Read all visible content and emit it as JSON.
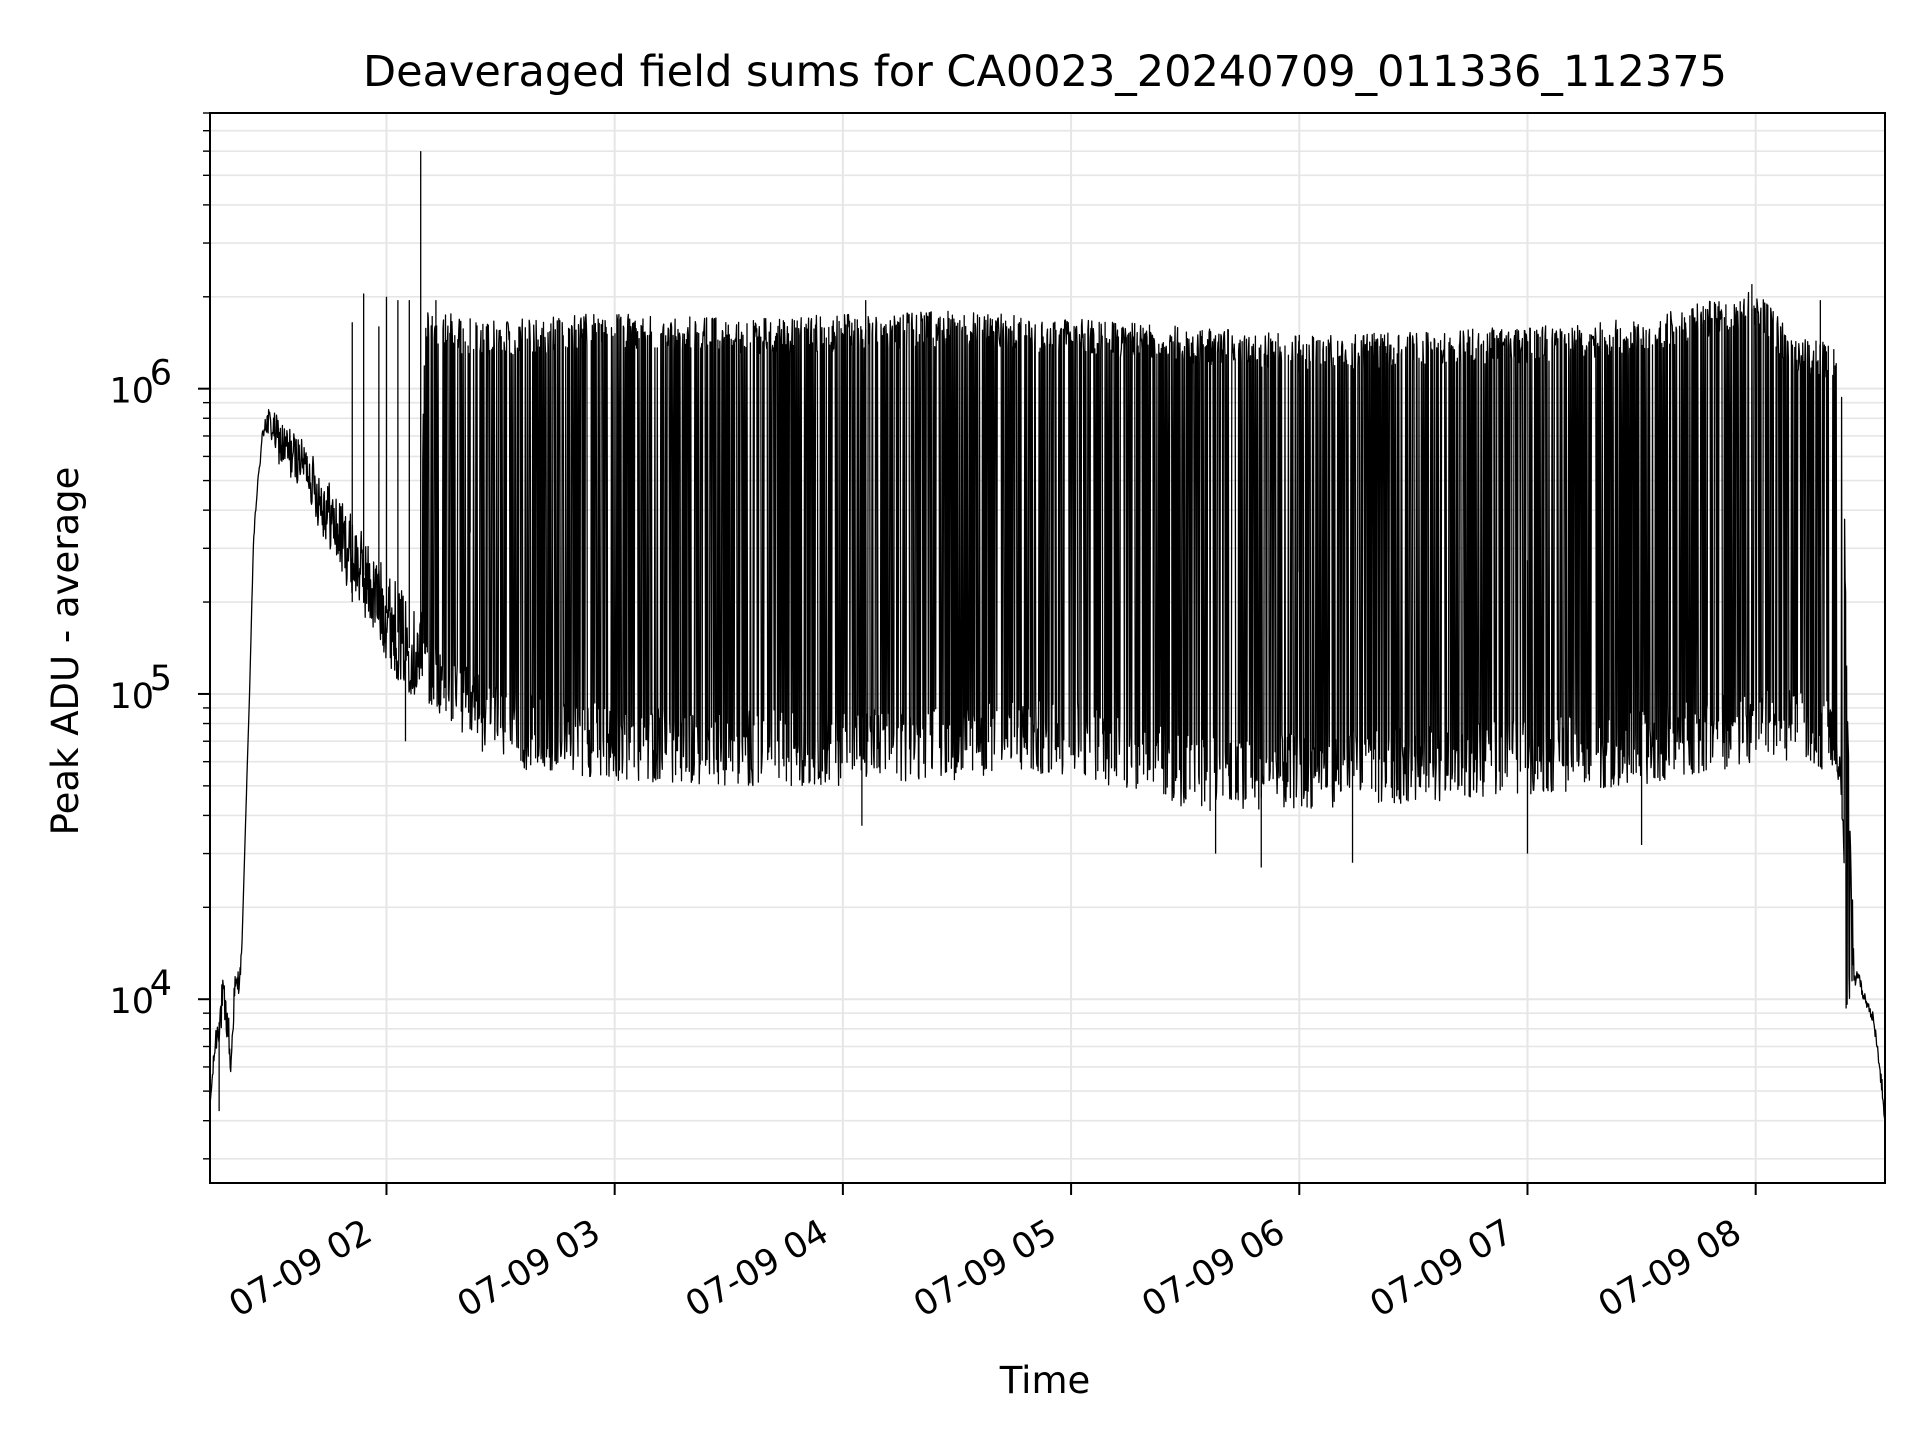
{
  "chart_data": {
    "type": "line",
    "title": "Deaveraged field sums for CA0023_20240709_011336_112375",
    "xlabel": "Time",
    "ylabel": "Peak ADU - average",
    "y_scale": "log",
    "ylim": [
      2500,
      8000000
    ],
    "xlim": [
      "2024-07-09T01:13:36",
      "2024-07-09T08:34:00"
    ],
    "grid": true,
    "grid_color": "#e6e6e6",
    "line_color": "#000000",
    "x_ticks": [
      {
        "t": "2024-07-09T02:00:00",
        "label": "07-09 02"
      },
      {
        "t": "2024-07-09T03:00:00",
        "label": "07-09 03"
      },
      {
        "t": "2024-07-09T04:00:00",
        "label": "07-09 04"
      },
      {
        "t": "2024-07-09T05:00:00",
        "label": "07-09 05"
      },
      {
        "t": "2024-07-09T06:00:00",
        "label": "07-09 06"
      },
      {
        "t": "2024-07-09T07:00:00",
        "label": "07-09 07"
      },
      {
        "t": "2024-07-09T08:00:00",
        "label": "07-09 08"
      }
    ],
    "y_ticks": [
      {
        "value": 10000,
        "base": "10",
        "exp": "4"
      },
      {
        "value": 100000,
        "base": "10",
        "exp": "5"
      },
      {
        "value": 1000000,
        "base": "10",
        "exp": "6"
      }
    ],
    "series": [
      {
        "x": [
          "2024-07-09T01:13:36",
          "2024-07-09T01:15:00",
          "2024-07-09T01:17:00",
          "2024-07-09T01:18:30",
          "2024-07-09T01:19:00",
          "2024-07-09T01:20:00",
          "2024-07-09T01:21:30",
          "2024-07-09T01:22:00",
          "2024-07-09T01:23:00",
          "2024-07-09T01:24:00",
          "2024-07-09T01:25:00",
          "2024-07-09T01:26:00",
          "2024-07-09T01:27:00",
          "2024-07-09T01:28:00",
          "2024-07-09T01:30:00",
          "2024-07-09T01:32:00",
          "2024-07-09T01:33:00",
          "2024-07-09T01:35:00",
          "2024-07-09T01:36:00",
          "2024-07-09T01:37:00",
          "2024-07-09T01:39:00",
          "2024-07-09T01:41:00",
          "2024-07-09T01:43:00",
          "2024-07-09T01:45:00",
          "2024-07-09T01:47:00",
          "2024-07-09T01:50:00",
          "2024-07-09T01:53:00",
          "2024-07-09T01:56:00",
          "2024-07-09T02:00:00",
          "2024-07-09T02:03:00",
          "2024-07-09T02:06:00",
          "2024-07-09T02:09:00",
          "2024-07-09T02:10:00",
          "2024-07-09T02:11:00",
          "2024-07-09T02:15:00",
          "2024-07-09T02:20:00",
          "2024-07-09T02:25:00",
          "2024-07-09T02:30:00",
          "2024-07-09T02:40:00",
          "2024-07-09T03:00:00",
          "2024-07-09T03:30:00",
          "2024-07-09T04:00:00",
          "2024-07-09T04:30:00",
          "2024-07-09T05:00:00",
          "2024-07-09T05:15:00",
          "2024-07-09T05:30:00",
          "2024-07-09T05:45:00",
          "2024-07-09T06:00:00",
          "2024-07-09T06:30:00",
          "2024-07-09T07:00:00",
          "2024-07-09T07:30:00",
          "2024-07-09T07:45:00",
          "2024-07-09T08:00:00",
          "2024-07-09T08:10:00",
          "2024-07-09T08:20:00",
          "2024-07-09T08:22:00",
          "2024-07-09T08:23:00",
          "2024-07-09T08:24:00",
          "2024-07-09T08:26:00",
          "2024-07-09T08:27:00",
          "2024-07-09T08:28:00",
          "2024-07-09T08:30:00",
          "2024-07-09T08:31:00",
          "2024-07-09T08:33:00",
          "2024-07-09T08:34:00"
        ],
        "low": [
          4500,
          6500,
          8000,
          7000,
          5500,
          9000,
          11000,
          15000,
          40000,
          100000,
          300000,
          450000,
          600000,
          700000,
          650000,
          550000,
          520000,
          500000,
          480000,
          500000,
          480000,
          380000,
          330000,
          300000,
          260000,
          220000,
          190000,
          160000,
          130000,
          110000,
          100000,
          95000,
          90000,
          88000,
          80000,
          70000,
          65000,
          58000,
          55000,
          52000,
          50000,
          50000,
          52000,
          55000,
          48000,
          42000,
          40000,
          42000,
          44000,
          47000,
          50000,
          55000,
          58000,
          60000,
          55000,
          50000,
          25000,
          6000,
          10000,
          12000,
          10000,
          9000,
          8000,
          5000,
          3500
        ],
        "high": [
          4500,
          8000,
          12000,
          9000,
          6000,
          12000,
          13000,
          15000,
          40000,
          100000,
          320000,
          480000,
          650000,
          900000,
          850000,
          800000,
          780000,
          750000,
          720000,
          700000,
          650000,
          600000,
          550000,
          500000,
          450000,
          400000,
          350000,
          300000,
          260000,
          230000,
          200000,
          180000,
          1700000,
          1900000,
          1800000,
          1700000,
          1650000,
          1700000,
          1700000,
          1800000,
          1700000,
          1750000,
          1800000,
          1700000,
          1650000,
          1600000,
          1550000,
          1500000,
          1550000,
          1600000,
          1700000,
          1900000,
          2100000,
          1500000,
          1400000,
          1200000,
          1000000,
          100000,
          12000,
          12500,
          11000,
          9500,
          9000,
          6000,
          4000
        ]
      }
    ],
    "spikes": [
      {
        "t": "2024-07-09T01:51:00",
        "value": 1650000
      },
      {
        "t": "2024-07-09T01:54:00",
        "value": 2050000
      },
      {
        "t": "2024-07-09T01:58:00",
        "value": 1600000
      },
      {
        "t": "2024-07-09T02:00:00",
        "value": 2000000
      },
      {
        "t": "2024-07-09T02:03:00",
        "value": 1950000
      },
      {
        "t": "2024-07-09T02:06:00",
        "value": 1950000
      },
      {
        "t": "2024-07-09T02:09:00",
        "value": 6000000
      },
      {
        "t": "2024-07-09T02:13:00",
        "value": 1950000
      },
      {
        "t": "2024-07-09T02:17:00",
        "value": 1250000
      },
      {
        "t": "2024-07-09T02:22:00",
        "value": 1700000
      },
      {
        "t": "2024-07-09T04:06:00",
        "value": 1950000
      },
      {
        "t": "2024-07-09T06:00:00",
        "value": 1500000
      },
      {
        "t": "2024-07-09T07:59:00",
        "value": 2200000
      },
      {
        "t": "2024-07-09T08:17:00",
        "value": 1950000
      }
    ],
    "dips": [
      {
        "t": "2024-07-09T01:16:00",
        "value": 4300
      },
      {
        "t": "2024-07-09T01:51:00",
        "value": 200000
      },
      {
        "t": "2024-07-09T02:05:00",
        "value": 70000
      },
      {
        "t": "2024-07-09T04:05:00",
        "value": 37000
      },
      {
        "t": "2024-07-09T05:38:00",
        "value": 30000
      },
      {
        "t": "2024-07-09T05:50:00",
        "value": 27000
      },
      {
        "t": "2024-07-09T06:14:00",
        "value": 28000
      },
      {
        "t": "2024-07-09T07:00:00",
        "value": 30000
      },
      {
        "t": "2024-07-09T07:30:00",
        "value": 32000
      }
    ]
  }
}
